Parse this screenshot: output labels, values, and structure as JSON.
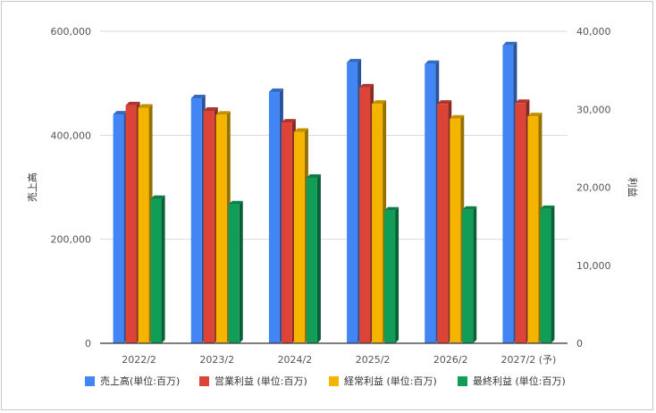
{
  "chart_data": {
    "type": "bar",
    "categories": [
      "2022/2",
      "2023/2",
      "2024/2",
      "2025/2",
      "2026/2",
      "2027/2 (予)"
    ],
    "ylabel_left": "売上高",
    "ylabel_right": "利益",
    "ylim_left": [
      0,
      600000
    ],
    "ylim_right": [
      0,
      40000
    ],
    "yticks_left": [
      "0",
      "200,000",
      "400,000",
      "600,000"
    ],
    "yticks_right": [
      "0",
      "10,000",
      "20,000",
      "30,000",
      "40,000"
    ],
    "grid": true,
    "legend_position": "bottom",
    "series": [
      {
        "name": "売上高(単位:百万)",
        "axis": "left",
        "color": "#4285f4",
        "values": [
          440000,
          471000,
          483000,
          540000,
          537000,
          573000
        ]
      },
      {
        "name": "営業利益 (単位:百万)",
        "axis": "right",
        "color": "#db4437",
        "values": [
          30500,
          29800,
          28300,
          32800,
          30700,
          30800
        ]
      },
      {
        "name": "経常利益 (単位:百万)",
        "axis": "right",
        "color": "#f4b400",
        "values": [
          30200,
          29300,
          27100,
          30700,
          28800,
          29100
        ]
      },
      {
        "name": "最終利益 (単位:百万)",
        "axis": "right",
        "color": "#0f9d58",
        "values": [
          18500,
          17800,
          21200,
          17000,
          17100,
          17200
        ]
      }
    ]
  }
}
